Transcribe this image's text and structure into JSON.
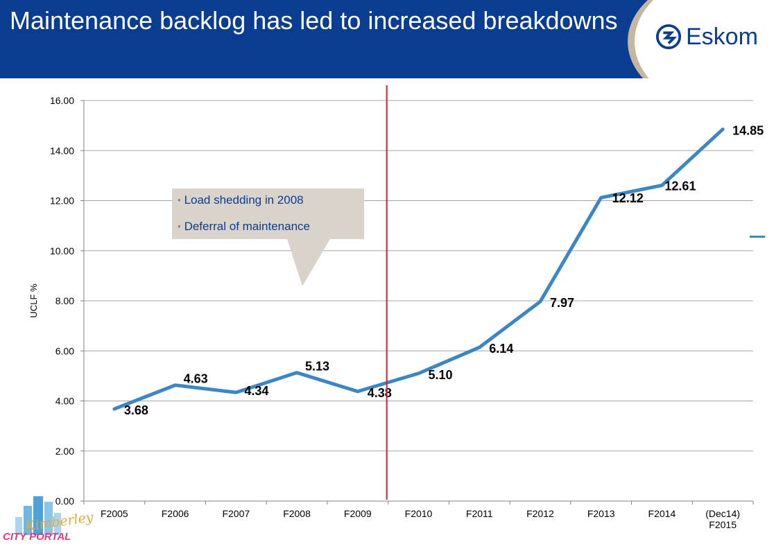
{
  "header": {
    "title": "Maintenance backlog has led to increased breakdowns",
    "logo_text": "Eskom",
    "background": "#0a3d8f"
  },
  "callout": {
    "items": [
      "Load shedding in 2008",
      "Deferral of maintenance"
    ]
  },
  "watermark": {
    "line1": "Kimberley",
    "line2": "CITY PORTAL"
  },
  "chart_data": {
    "type": "line",
    "title": "",
    "xlabel": "",
    "ylabel": "UCLF %",
    "categories": [
      "F2005",
      "F2006",
      "F2007",
      "F2008",
      "F2009",
      "F2010",
      "F2011",
      "F2012",
      "F2013",
      "F2014",
      "(Dec14) F2015"
    ],
    "series": [
      {
        "name": "UCLF %",
        "values": [
          3.68,
          4.63,
          4.34,
          5.13,
          4.38,
          5.1,
          6.14,
          7.97,
          12.12,
          12.61,
          14.85
        ],
        "color": "#3b86c4"
      }
    ],
    "data_labels": [
      "3.68",
      "4.63",
      "4.34",
      "5.13",
      "4.38",
      "5.10",
      "6.14",
      "7.97",
      "12.12",
      "12.61",
      "14.85"
    ],
    "yticks": [
      "0.00",
      "2.00",
      "4.00",
      "6.00",
      "8.00",
      "10.00",
      "12.00",
      "14.00",
      "16.00"
    ],
    "ylim": [
      0,
      16
    ],
    "grid": true,
    "divider_after": "F2009",
    "divider_color": "#e8191e"
  }
}
